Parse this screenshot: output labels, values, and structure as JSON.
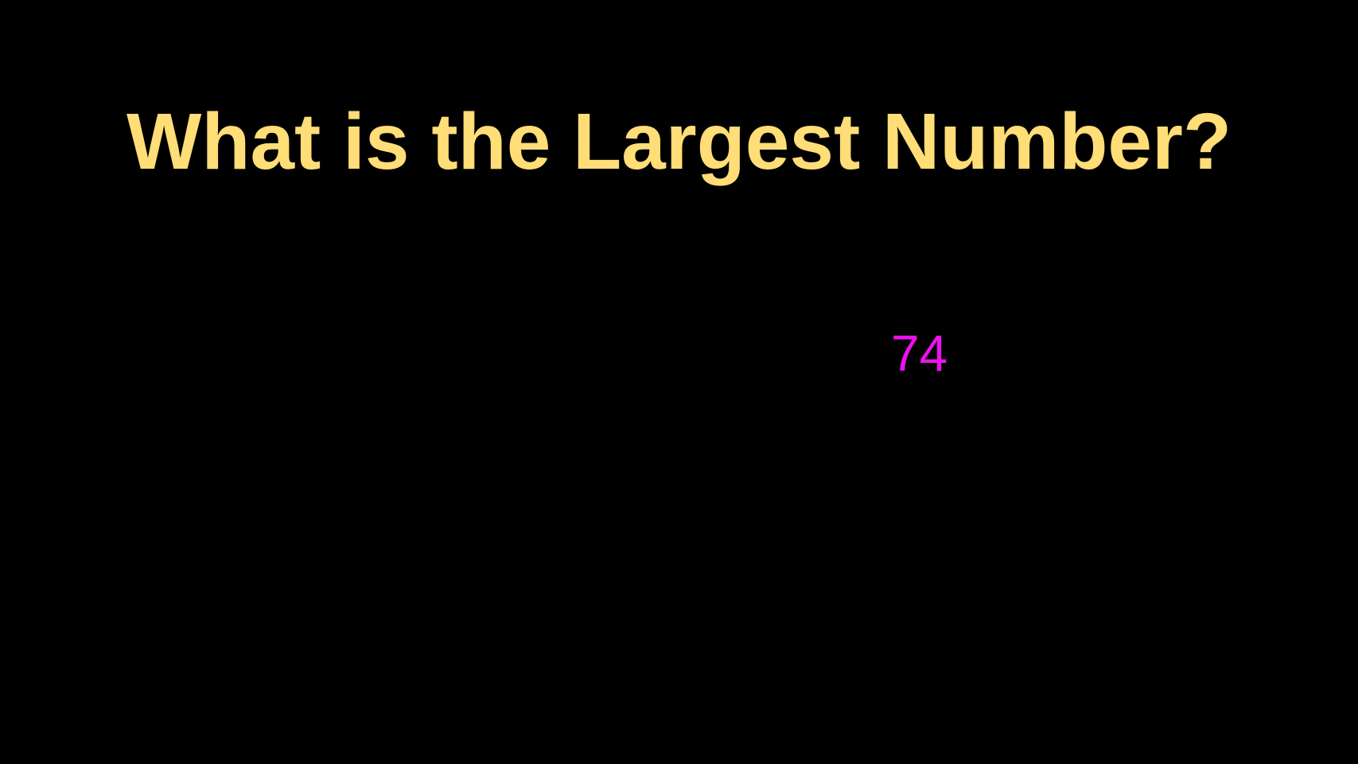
{
  "slide": {
    "title": "What is the Largest Number?",
    "number": "74"
  },
  "colors": {
    "background": "#000000",
    "title": "#FFDD77",
    "number": "#EE11EE"
  }
}
